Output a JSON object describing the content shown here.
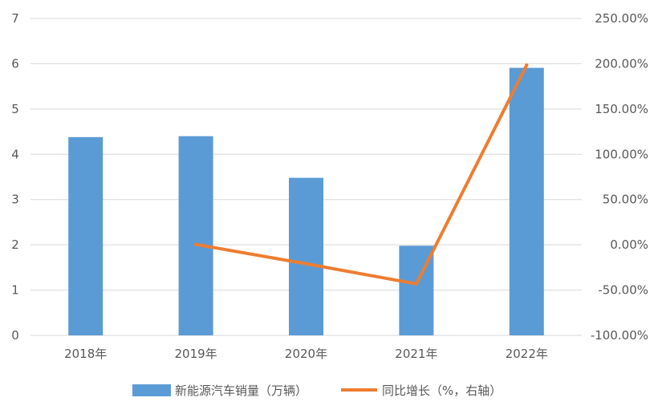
{
  "chart_data": {
    "type": "bar+line",
    "categories": [
      "2018年",
      "2019年",
      "2020年",
      "2021年",
      "2022年"
    ],
    "series": [
      {
        "name": "新能源汽车销量（万辆）",
        "type": "bar",
        "axis": "left",
        "color": "#5B9BD5",
        "values": [
          4.38,
          4.4,
          3.48,
          1.98,
          5.91
        ]
      },
      {
        "name": "同比增长（%，右轴）",
        "type": "line",
        "axis": "right",
        "color": "#ED7D31",
        "values": [
          null,
          0.46,
          -20.9,
          -43.1,
          198.5
        ]
      }
    ],
    "y_left": {
      "min": 0,
      "max": 7,
      "step": 1,
      "ticks": [
        "0",
        "1",
        "2",
        "3",
        "4",
        "5",
        "6",
        "7"
      ]
    },
    "y_right": {
      "min": -100,
      "max": 250,
      "step": 50,
      "ticks": [
        "-100.00%",
        "-50.00%",
        "0.00%",
        "50.00%",
        "100.00%",
        "150.00%",
        "200.00%",
        "250.00%"
      ]
    },
    "grid": true,
    "gridColor": "#D9D9D9",
    "legend": "bottom",
    "title": "",
    "xlabel": "",
    "ylabel": ""
  }
}
